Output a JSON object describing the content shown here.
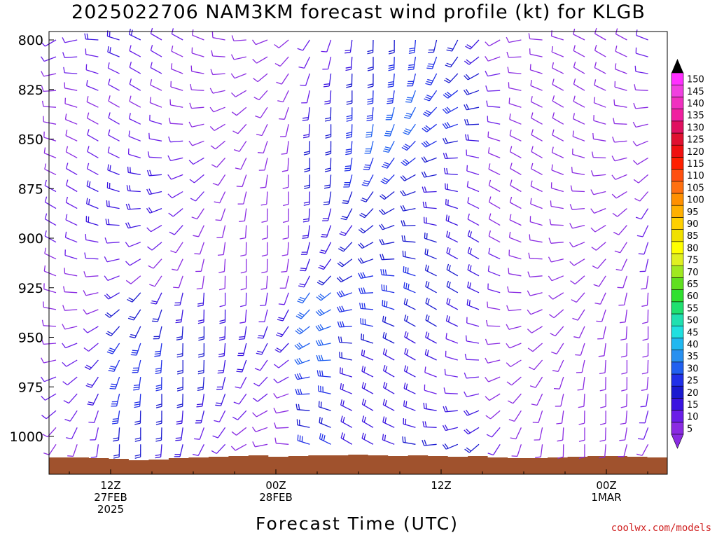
{
  "title": "2025022706 NAM3KM forecast wind profile (kt) for KLGB",
  "credit": "coolwx.com/models",
  "chart_data": {
    "type": "wind_barb_time_height",
    "title": "2025022706 NAM3KM forecast wind profile (kt) for KLGB",
    "xlabel": "Forecast Time (UTC)",
    "ylabel": "",
    "y_axis": {
      "unit": "hPa",
      "ticks": [
        "800",
        "825",
        "850",
        "875",
        "900",
        "925",
        "950",
        "975",
        "1000"
      ],
      "range": [
        800,
        1020
      ],
      "inverted": true
    },
    "x_axis": {
      "range_hours_utc": [
        "2025-02-27 06Z",
        "2025-03-01 21Z"
      ],
      "ticks": [
        {
          "time": "2025-02-27 12Z",
          "lines": [
            "12Z",
            "27FEB",
            "2025"
          ]
        },
        {
          "time": "2025-02-28 00Z",
          "lines": [
            "00Z",
            "28FEB"
          ]
        },
        {
          "time": "2025-02-28 12Z",
          "lines": [
            "12Z"
          ]
        },
        {
          "time": "2025-03-01 00Z",
          "lines": [
            "00Z",
            "1MAR"
          ]
        },
        {
          "time": "2025-03-01 12Z",
          "lines": [
            "12Z"
          ]
        }
      ]
    },
    "colorbar": {
      "unit": "kt",
      "levels": [
        5,
        10,
        15,
        20,
        25,
        30,
        35,
        40,
        45,
        50,
        55,
        60,
        65,
        70,
        75,
        80,
        85,
        90,
        95,
        100,
        105,
        110,
        115,
        120,
        125,
        130,
        135,
        140,
        145,
        150
      ],
      "colors": [
        "#8a2be2",
        "#6a1ee8",
        "#3a14e0",
        "#1a1ad0",
        "#2030e8",
        "#2060f0",
        "#2890f0",
        "#20b8f0",
        "#20e0e0",
        "#20e0b0",
        "#20e070",
        "#30e030",
        "#60e020",
        "#a0e820",
        "#e0f020",
        "#ffff00",
        "#f0e000",
        "#ffd000",
        "#ffb000",
        "#ff9000",
        "#ff7010",
        "#ff5010",
        "#ff2000",
        "#f01010",
        "#e01030",
        "#e01060",
        "#f020a0",
        "#f030c0",
        "#f040e0",
        "#ff30ff"
      ]
    },
    "series": [],
    "grid": false
  }
}
